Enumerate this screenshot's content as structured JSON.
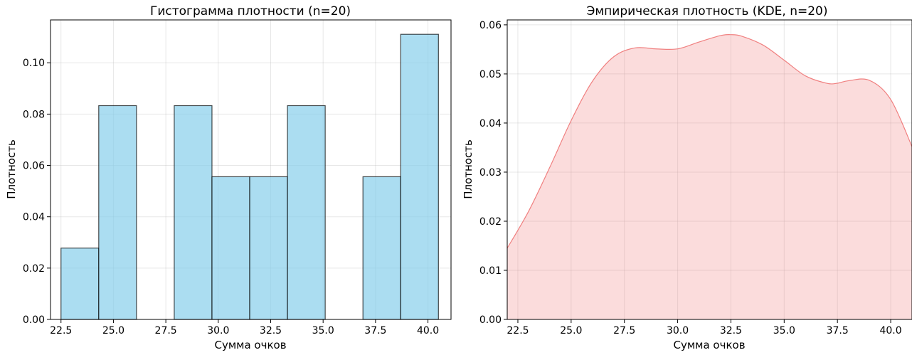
{
  "chart_data": [
    {
      "type": "bar",
      "title": "Гистограмма плотности (n=20)",
      "xlabel": "Сумма очков",
      "ylabel": "Плотность",
      "bin_edges": [
        22.5,
        24.3,
        26.1,
        27.9,
        29.7,
        31.5,
        33.3,
        35.1,
        36.9,
        38.7,
        40.5
      ],
      "values": [
        0.0278,
        0.0833,
        0.0,
        0.0833,
        0.0556,
        0.0556,
        0.0833,
        0.0,
        0.0556,
        0.1111
      ],
      "xlim": [
        22.0,
        41.1
      ],
      "ylim": [
        0,
        0.1167
      ],
      "xticks": [
        22.5,
        25.0,
        27.5,
        30.0,
        32.5,
        35.0,
        37.5,
        40.0
      ],
      "xtick_labels": [
        "22.5",
        "25.0",
        "27.5",
        "30.0",
        "32.5",
        "35.0",
        "37.5",
        "40.0"
      ],
      "yticks": [
        0,
        0.02,
        0.04,
        0.06,
        0.08,
        0.1
      ],
      "ytick_labels": [
        "0.00",
        "0.02",
        "0.04",
        "0.06",
        "0.08",
        "0.10"
      ],
      "grid": true,
      "colors": {
        "fill": "#87ceeb",
        "edge": "#000000"
      }
    },
    {
      "type": "area",
      "title": "Эмпирическая плотность (KDE, n=20)",
      "xlabel": "Сумма очков",
      "ylabel": "Плотность",
      "x": [
        22.0,
        23.0,
        24.0,
        25.0,
        26.0,
        27.0,
        28.0,
        29.0,
        30.0,
        31.0,
        32.0,
        32.5,
        33.0,
        34.0,
        35.0,
        36.0,
        37.0,
        37.5,
        38.0,
        39.0,
        40.0,
        41.0
      ],
      "y": [
        0.0145,
        0.022,
        0.031,
        0.0405,
        0.0485,
        0.0535,
        0.0553,
        0.0551,
        0.0551,
        0.0565,
        0.0578,
        0.058,
        0.0577,
        0.0559,
        0.0528,
        0.0496,
        0.0481,
        0.0481,
        0.0486,
        0.0487,
        0.0448,
        0.0352
      ],
      "xlim": [
        22.0,
        41.0
      ],
      "ylim": [
        0,
        0.061
      ],
      "xticks": [
        22.5,
        25.0,
        27.5,
        30.0,
        32.5,
        35.0,
        37.5,
        40.0
      ],
      "xtick_labels": [
        "22.5",
        "25.0",
        "27.5",
        "30.0",
        "32.5",
        "35.0",
        "37.5",
        "40.0"
      ],
      "yticks": [
        0,
        0.01,
        0.02,
        0.03,
        0.04,
        0.05,
        0.06
      ],
      "ytick_labels": [
        "0.00",
        "0.01",
        "0.02",
        "0.03",
        "0.04",
        "0.05",
        "0.06"
      ],
      "grid": true,
      "colors": {
        "fill": "#f08080",
        "line": "#f08080"
      }
    }
  ]
}
